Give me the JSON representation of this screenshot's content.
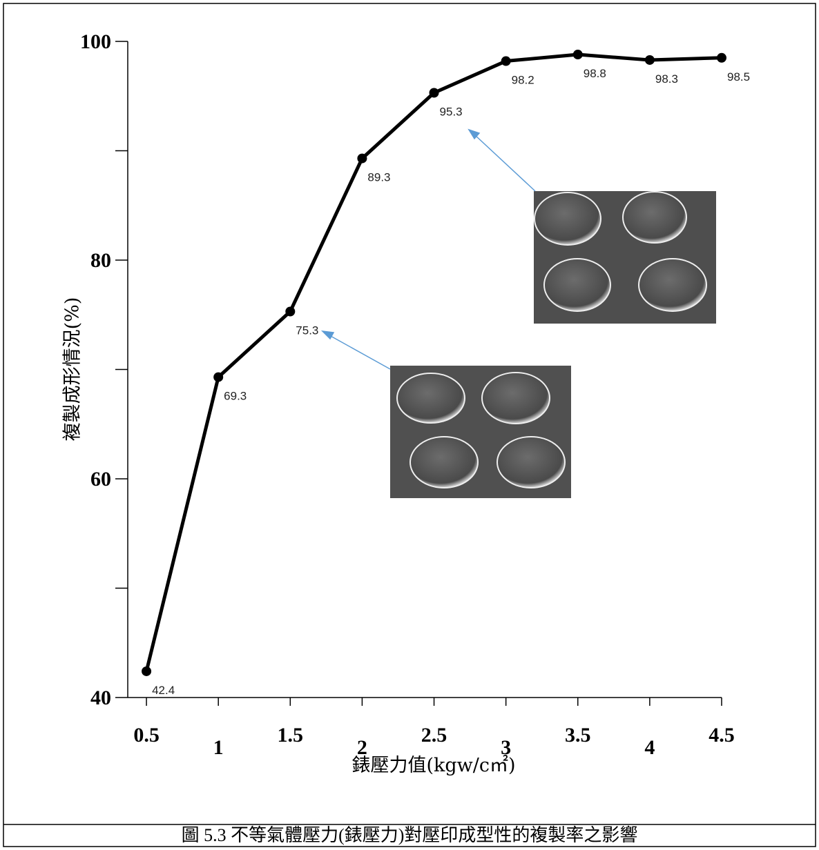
{
  "chart_data": {
    "type": "line",
    "caption": "圖 5.3  不等氣體壓力(錶壓力)對壓印成型性的複製率之影響",
    "x_label": "錶壓力值(kgw/c㎡)",
    "y_label": "複製成形情況(%)",
    "x": [
      0.5,
      1,
      1.5,
      2,
      2.5,
      3,
      3.5,
      4,
      4.5
    ],
    "series": [
      {
        "color": "#000000",
        "values": [
          42.4,
          69.3,
          75.3,
          89.3,
          95.3,
          98.2,
          98.8,
          98.3,
          98.5
        ]
      }
    ],
    "xlim": [
      0.37,
      4.5
    ],
    "xticks": [
      0.5,
      1,
      1.5,
      2,
      2.5,
      3,
      3.5,
      4,
      4.5
    ],
    "ylim": [
      40,
      100
    ],
    "yticks": [
      40,
      60,
      80,
      100
    ],
    "yminorticks": [
      50,
      70,
      90
    ]
  }
}
